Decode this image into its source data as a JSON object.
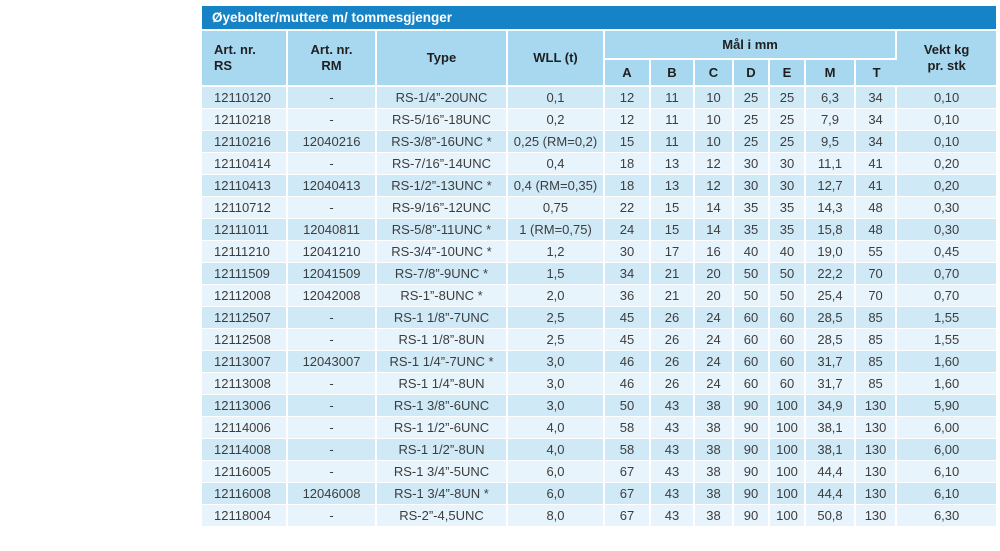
{
  "title": "Øyebolter/muttere m/ tommesgjenger",
  "colors": {
    "title-bar": "#1583c5",
    "header-bg": "#a8d8f0",
    "header-text": "#1f1f1f",
    "row-odd": "#d0e9f7",
    "row-even": "#e8f4fc",
    "text": "#3d3d3d"
  },
  "table": {
    "headers": {
      "rs_line1": "Art. nr.",
      "rs_line2": "RS",
      "rm_line1": "Art. nr.",
      "rm_line2": "RM",
      "type": "Type",
      "wll": "WLL (t)",
      "dims_group": "Mål i mm",
      "weight_line1": "Vekt kg",
      "weight_line2": "pr. stk"
    },
    "dim_columns": [
      "A",
      "B",
      "C",
      "D",
      "E",
      "M",
      "T"
    ],
    "rows": [
      {
        "rs": "12110120",
        "rm": "-",
        "type": "RS-1/4”-20UNC",
        "wll": "0,1",
        "dims": [
          12,
          11,
          10,
          25,
          25,
          "6,3",
          34
        ],
        "weight": "0,10"
      },
      {
        "rs": "12110218",
        "rm": "-",
        "type": "RS-5/16”-18UNC",
        "wll": "0,2",
        "dims": [
          12,
          11,
          10,
          25,
          25,
          "7,9",
          34
        ],
        "weight": "0,10"
      },
      {
        "rs": "12110216",
        "rm": "12040216",
        "type": "RS-3/8”-16UNC *",
        "wll": "0,25 (RM=0,2)",
        "dims": [
          15,
          11,
          10,
          25,
          25,
          "9,5",
          34
        ],
        "weight": "0,10"
      },
      {
        "rs": "12110414",
        "rm": "-",
        "type": "RS-7/16”-14UNC",
        "wll": "0,4",
        "dims": [
          18,
          13,
          12,
          30,
          30,
          "11,1",
          41
        ],
        "weight": "0,20"
      },
      {
        "rs": "12110413",
        "rm": "12040413",
        "type": "RS-1/2”-13UNC *",
        "wll": "0,4 (RM=0,35)",
        "dims": [
          18,
          13,
          12,
          30,
          30,
          "12,7",
          41
        ],
        "weight": "0,20"
      },
      {
        "rs": "12110712",
        "rm": "-",
        "type": "RS-9/16”-12UNC",
        "wll": "0,75",
        "dims": [
          22,
          15,
          14,
          35,
          35,
          "14,3",
          48
        ],
        "weight": "0,30"
      },
      {
        "rs": "12111011",
        "rm": "12040811",
        "type": "RS-5/8”-11UNC *",
        "wll": "1 (RM=0,75)",
        "dims": [
          24,
          15,
          14,
          35,
          35,
          "15,8",
          48
        ],
        "weight": "0,30"
      },
      {
        "rs": "12111210",
        "rm": "12041210",
        "type": "RS-3/4”-10UNC *",
        "wll": "1,2",
        "dims": [
          30,
          17,
          16,
          40,
          40,
          "19,0",
          55
        ],
        "weight": "0,45"
      },
      {
        "rs": "12111509",
        "rm": "12041509",
        "type": "RS-7/8”-9UNC *",
        "wll": "1,5",
        "dims": [
          34,
          21,
          20,
          50,
          50,
          "22,2",
          70
        ],
        "weight": "0,70"
      },
      {
        "rs": "12112008",
        "rm": "12042008",
        "type": "RS-1”-8UNC *",
        "wll": "2,0",
        "dims": [
          36,
          21,
          20,
          50,
          50,
          "25,4",
          70
        ],
        "weight": "0,70"
      },
      {
        "rs": "12112507",
        "rm": "-",
        "type": "RS-1 1/8”-7UNC",
        "wll": "2,5",
        "dims": [
          45,
          26,
          24,
          60,
          60,
          "28,5",
          85
        ],
        "weight": "1,55"
      },
      {
        "rs": "12112508",
        "rm": "-",
        "type": "RS-1 1/8”-8UN",
        "wll": "2,5",
        "dims": [
          45,
          26,
          24,
          60,
          60,
          "28,5",
          85
        ],
        "weight": "1,55"
      },
      {
        "rs": "12113007",
        "rm": "12043007",
        "type": "RS-1 1/4”-7UNC *",
        "wll": "3,0",
        "dims": [
          46,
          26,
          24,
          60,
          60,
          "31,7",
          85
        ],
        "weight": "1,60"
      },
      {
        "rs": "12113008",
        "rm": "-",
        "type": "RS-1 1/4”-8UN",
        "wll": "3,0",
        "dims": [
          46,
          26,
          24,
          60,
          60,
          "31,7",
          85
        ],
        "weight": "1,60"
      },
      {
        "rs": "12113006",
        "rm": "-",
        "type": "RS-1 3/8”-6UNC",
        "wll": "3,0",
        "dims": [
          50,
          43,
          38,
          90,
          100,
          "34,9",
          130
        ],
        "weight": "5,90"
      },
      {
        "rs": "12114006",
        "rm": "-",
        "type": "RS-1 1/2”-6UNC",
        "wll": "4,0",
        "dims": [
          58,
          43,
          38,
          90,
          100,
          "38,1",
          130
        ],
        "weight": "6,00"
      },
      {
        "rs": "12114008",
        "rm": "-",
        "type": "RS-1 1/2”-8UN",
        "wll": "4,0",
        "dims": [
          58,
          43,
          38,
          90,
          100,
          "38,1",
          130
        ],
        "weight": "6,00"
      },
      {
        "rs": "12116005",
        "rm": "-",
        "type": "RS-1 3/4”-5UNC",
        "wll": "6,0",
        "dims": [
          67,
          43,
          38,
          90,
          100,
          "44,4",
          130
        ],
        "weight": "6,10"
      },
      {
        "rs": "12116008",
        "rm": "12046008",
        "type": "RS-1 3/4”-8UN *",
        "wll": "6,0",
        "dims": [
          67,
          43,
          38,
          90,
          100,
          "44,4",
          130
        ],
        "weight": "6,10"
      },
      {
        "rs": "12118004",
        "rm": "-",
        "type": "RS-2”-4,5UNC",
        "wll": "8,0",
        "dims": [
          67,
          43,
          38,
          90,
          100,
          "50,8",
          130
        ],
        "weight": "6,30"
      }
    ]
  }
}
